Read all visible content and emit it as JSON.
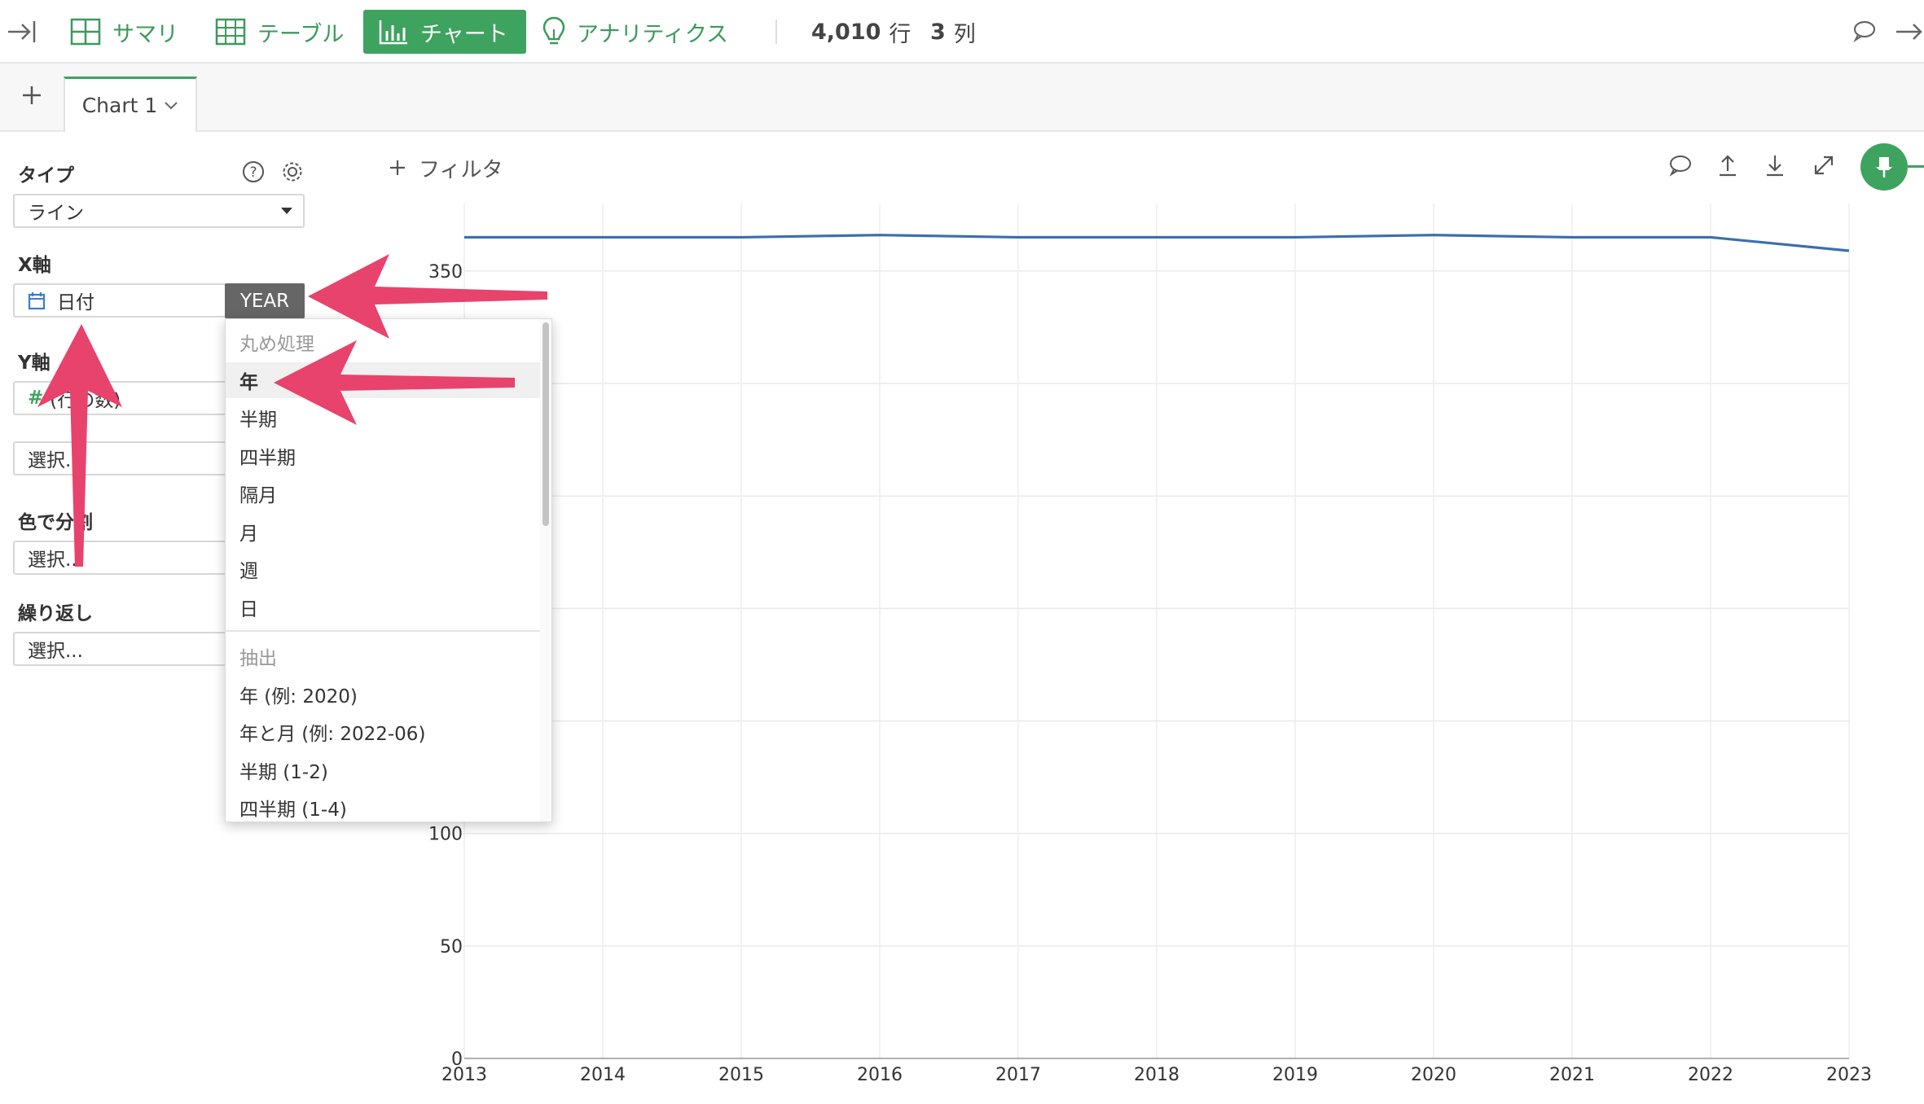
{
  "toolbar": {
    "collapse_icon": "collapse-left-icon",
    "tabs": [
      {
        "label": "サマリ",
        "icon": "summary-grid-icon"
      },
      {
        "label": "テーブル",
        "icon": "table-icon"
      },
      {
        "label": "チャート",
        "icon": "bar-chart-icon",
        "active": true
      },
      {
        "label": "アナリティクス",
        "icon": "lightbulb-icon"
      }
    ],
    "rows_value": "4,010",
    "rows_unit": "行",
    "cols_value": "3",
    "cols_unit": "列"
  },
  "chart_tabs": {
    "items": [
      {
        "label": "Chart 1"
      }
    ]
  },
  "panel": {
    "type_label": "タイプ",
    "type_value": "ライン",
    "x_label": "X軸",
    "x_value": "日付",
    "x_agg": "YEAR",
    "y_label": "Y軸",
    "y_value": "(行の数)",
    "y_placeholder": "選択...",
    "color_label": "色で分割",
    "color_placeholder": "選択...",
    "repeat_label": "繰り返し",
    "repeat_placeholder": "選択..."
  },
  "dropdown": {
    "rounding_header": "丸め処理",
    "rounding_items": [
      "年",
      "半期",
      "四半期",
      "隔月",
      "月",
      "週",
      "日"
    ],
    "selected": "年",
    "extract_header": "抽出",
    "extract_items": [
      "年 (例: 2020)",
      "年と月 (例: 2022-06)",
      "半期 (1-2)",
      "四半期 (1-4)"
    ]
  },
  "filter": {
    "label": "フィルタ"
  },
  "colors": {
    "accent_green": "#3ea35f",
    "line_blue": "#3a6fad",
    "annotation_arrow": "#e8436c"
  },
  "chart_data": {
    "type": "line",
    "x": [
      "2013",
      "2014",
      "2015",
      "2016",
      "2017",
      "2018",
      "2019",
      "2020",
      "2021",
      "2022",
      "2023"
    ],
    "series": [
      {
        "values": [
          365,
          365,
          365,
          366,
          365,
          365,
          365,
          366,
          365,
          365,
          359
        ]
      }
    ],
    "y_ticks": [
      0,
      50,
      100,
      150,
      200,
      250,
      300,
      350
    ],
    "y_tick_labels_visible": [
      "0",
      "50",
      "100",
      "350"
    ],
    "ylim": [
      0,
      380
    ],
    "grid": true
  }
}
